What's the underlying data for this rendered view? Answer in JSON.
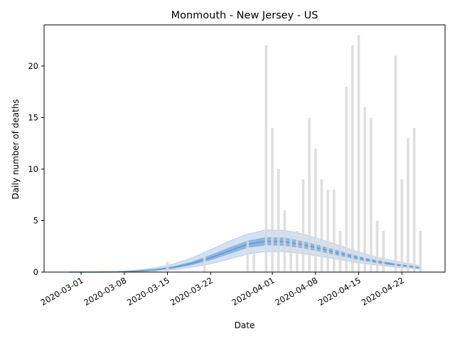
{
  "chart_data": {
    "type": "bar",
    "title": "Monmouth - New Jersey - US",
    "xlabel": "Date",
    "ylabel": "Daily number of deaths",
    "ylim": [
      0,
      24
    ],
    "xlim": [
      "2020-02-24",
      "2020-04-29"
    ],
    "grid": false,
    "legend": "none",
    "x_ticks": [
      "2020-03-01",
      "2020-03-08",
      "2020-03-15",
      "2020-03-22",
      "2020-04-01",
      "2020-04-08",
      "2020-04-15",
      "2020-04-22"
    ],
    "y_ticks": [
      0,
      5,
      10,
      15,
      20
    ],
    "colors": {
      "bars": "#d9d9d9",
      "median_line": "#6699cc",
      "inner_band": "#5b9bd5",
      "outer_band": "#a7c4e5"
    },
    "series": [
      {
        "type": "bar",
        "points": [
          {
            "x": "2020-03-15",
            "y": 1
          },
          {
            "x": "2020-03-21",
            "y": 2
          },
          {
            "x": "2020-03-28",
            "y": 3
          },
          {
            "x": "2020-03-29",
            "y": 2
          },
          {
            "x": "2020-03-31",
            "y": 22
          },
          {
            "x": "2020-04-01",
            "y": 14
          },
          {
            "x": "2020-04-02",
            "y": 10
          },
          {
            "x": "2020-04-03",
            "y": 6
          },
          {
            "x": "2020-04-04",
            "y": 4
          },
          {
            "x": "2020-04-05",
            "y": 4
          },
          {
            "x": "2020-04-06",
            "y": 9
          },
          {
            "x": "2020-04-07",
            "y": 15
          },
          {
            "x": "2020-04-08",
            "y": 12
          },
          {
            "x": "2020-04-09",
            "y": 9
          },
          {
            "x": "2020-04-10",
            "y": 8
          },
          {
            "x": "2020-04-11",
            "y": 8
          },
          {
            "x": "2020-04-12",
            "y": 4
          },
          {
            "x": "2020-04-13",
            "y": 18
          },
          {
            "x": "2020-04-14",
            "y": 22
          },
          {
            "x": "2020-04-15",
            "y": 23
          },
          {
            "x": "2020-04-16",
            "y": 16
          },
          {
            "x": "2020-04-17",
            "y": 15
          },
          {
            "x": "2020-04-18",
            "y": 5
          },
          {
            "x": "2020-04-19",
            "y": 4
          },
          {
            "x": "2020-04-21",
            "y": 21
          },
          {
            "x": "2020-04-22",
            "y": 9
          },
          {
            "x": "2020-04-23",
            "y": 13
          },
          {
            "x": "2020-04-24",
            "y": 14
          },
          {
            "x": "2020-04-25",
            "y": 4
          }
        ]
      },
      {
        "type": "band",
        "x": [
          "2020-02-28",
          "2020-03-03",
          "2020-03-07",
          "2020-03-10",
          "2020-03-13",
          "2020-03-16",
          "2020-03-19",
          "2020-03-22",
          "2020-03-25",
          "2020-03-28",
          "2020-03-31",
          "2020-04-03",
          "2020-04-06",
          "2020-04-09",
          "2020-04-12",
          "2020-04-15",
          "2020-04-18",
          "2020-04-21",
          "2020-04-24",
          "2020-04-25"
        ],
        "median": [
          0,
          0,
          0.02,
          0.1,
          0.22,
          0.45,
          0.85,
          1.4,
          2.05,
          2.7,
          3.0,
          2.95,
          2.65,
          2.25,
          1.8,
          1.35,
          1.0,
          0.72,
          0.5,
          0.4
        ],
        "inner_low": [
          0,
          0,
          0.01,
          0.07,
          0.16,
          0.35,
          0.68,
          1.15,
          1.75,
          2.35,
          2.6,
          2.55,
          2.3,
          1.95,
          1.55,
          1.15,
          0.85,
          0.6,
          0.42,
          0.33
        ],
        "inner_high": [
          0,
          0,
          0.03,
          0.14,
          0.3,
          0.57,
          1.03,
          1.67,
          2.38,
          3.05,
          3.4,
          3.35,
          3.0,
          2.55,
          2.05,
          1.55,
          1.15,
          0.83,
          0.58,
          0.47
        ],
        "outer_low": [
          0,
          0,
          0.01,
          0.04,
          0.1,
          0.22,
          0.46,
          0.8,
          1.25,
          1.75,
          2.0,
          1.98,
          1.78,
          1.5,
          1.2,
          0.9,
          0.66,
          0.47,
          0.33,
          0.26
        ],
        "outer_high": [
          0,
          0,
          0.05,
          0.2,
          0.42,
          0.8,
          1.38,
          2.17,
          3.0,
          3.7,
          4.1,
          4.05,
          3.7,
          3.15,
          2.55,
          1.95,
          1.45,
          1.05,
          0.74,
          0.6
        ]
      }
    ]
  }
}
